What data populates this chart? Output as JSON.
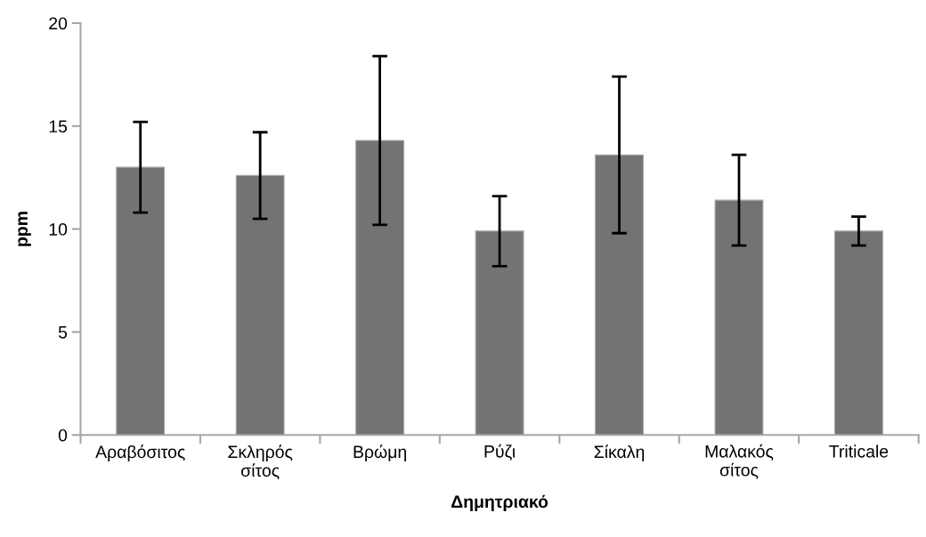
{
  "chart_data": {
    "type": "bar",
    "xlabel": "Δημητριακό",
    "ylabel": "ppm",
    "categories": [
      "Αραβόσιτος",
      "Σκληρός\nσίτος",
      "Βρώμη",
      "Ρύζι",
      "Σίκαλη",
      "Μαλακός\nσίτος",
      "Triticale"
    ],
    "values": [
      13.0,
      12.6,
      14.3,
      9.9,
      13.6,
      11.4,
      9.9
    ],
    "errors": [
      2.2,
      2.1,
      4.1,
      1.7,
      3.8,
      2.2,
      0.7
    ],
    "color": "#737373",
    "ylim": [
      0,
      20
    ],
    "yticks": [
      0,
      5,
      10,
      15,
      20
    ],
    "grid": false,
    "legend": false
  }
}
